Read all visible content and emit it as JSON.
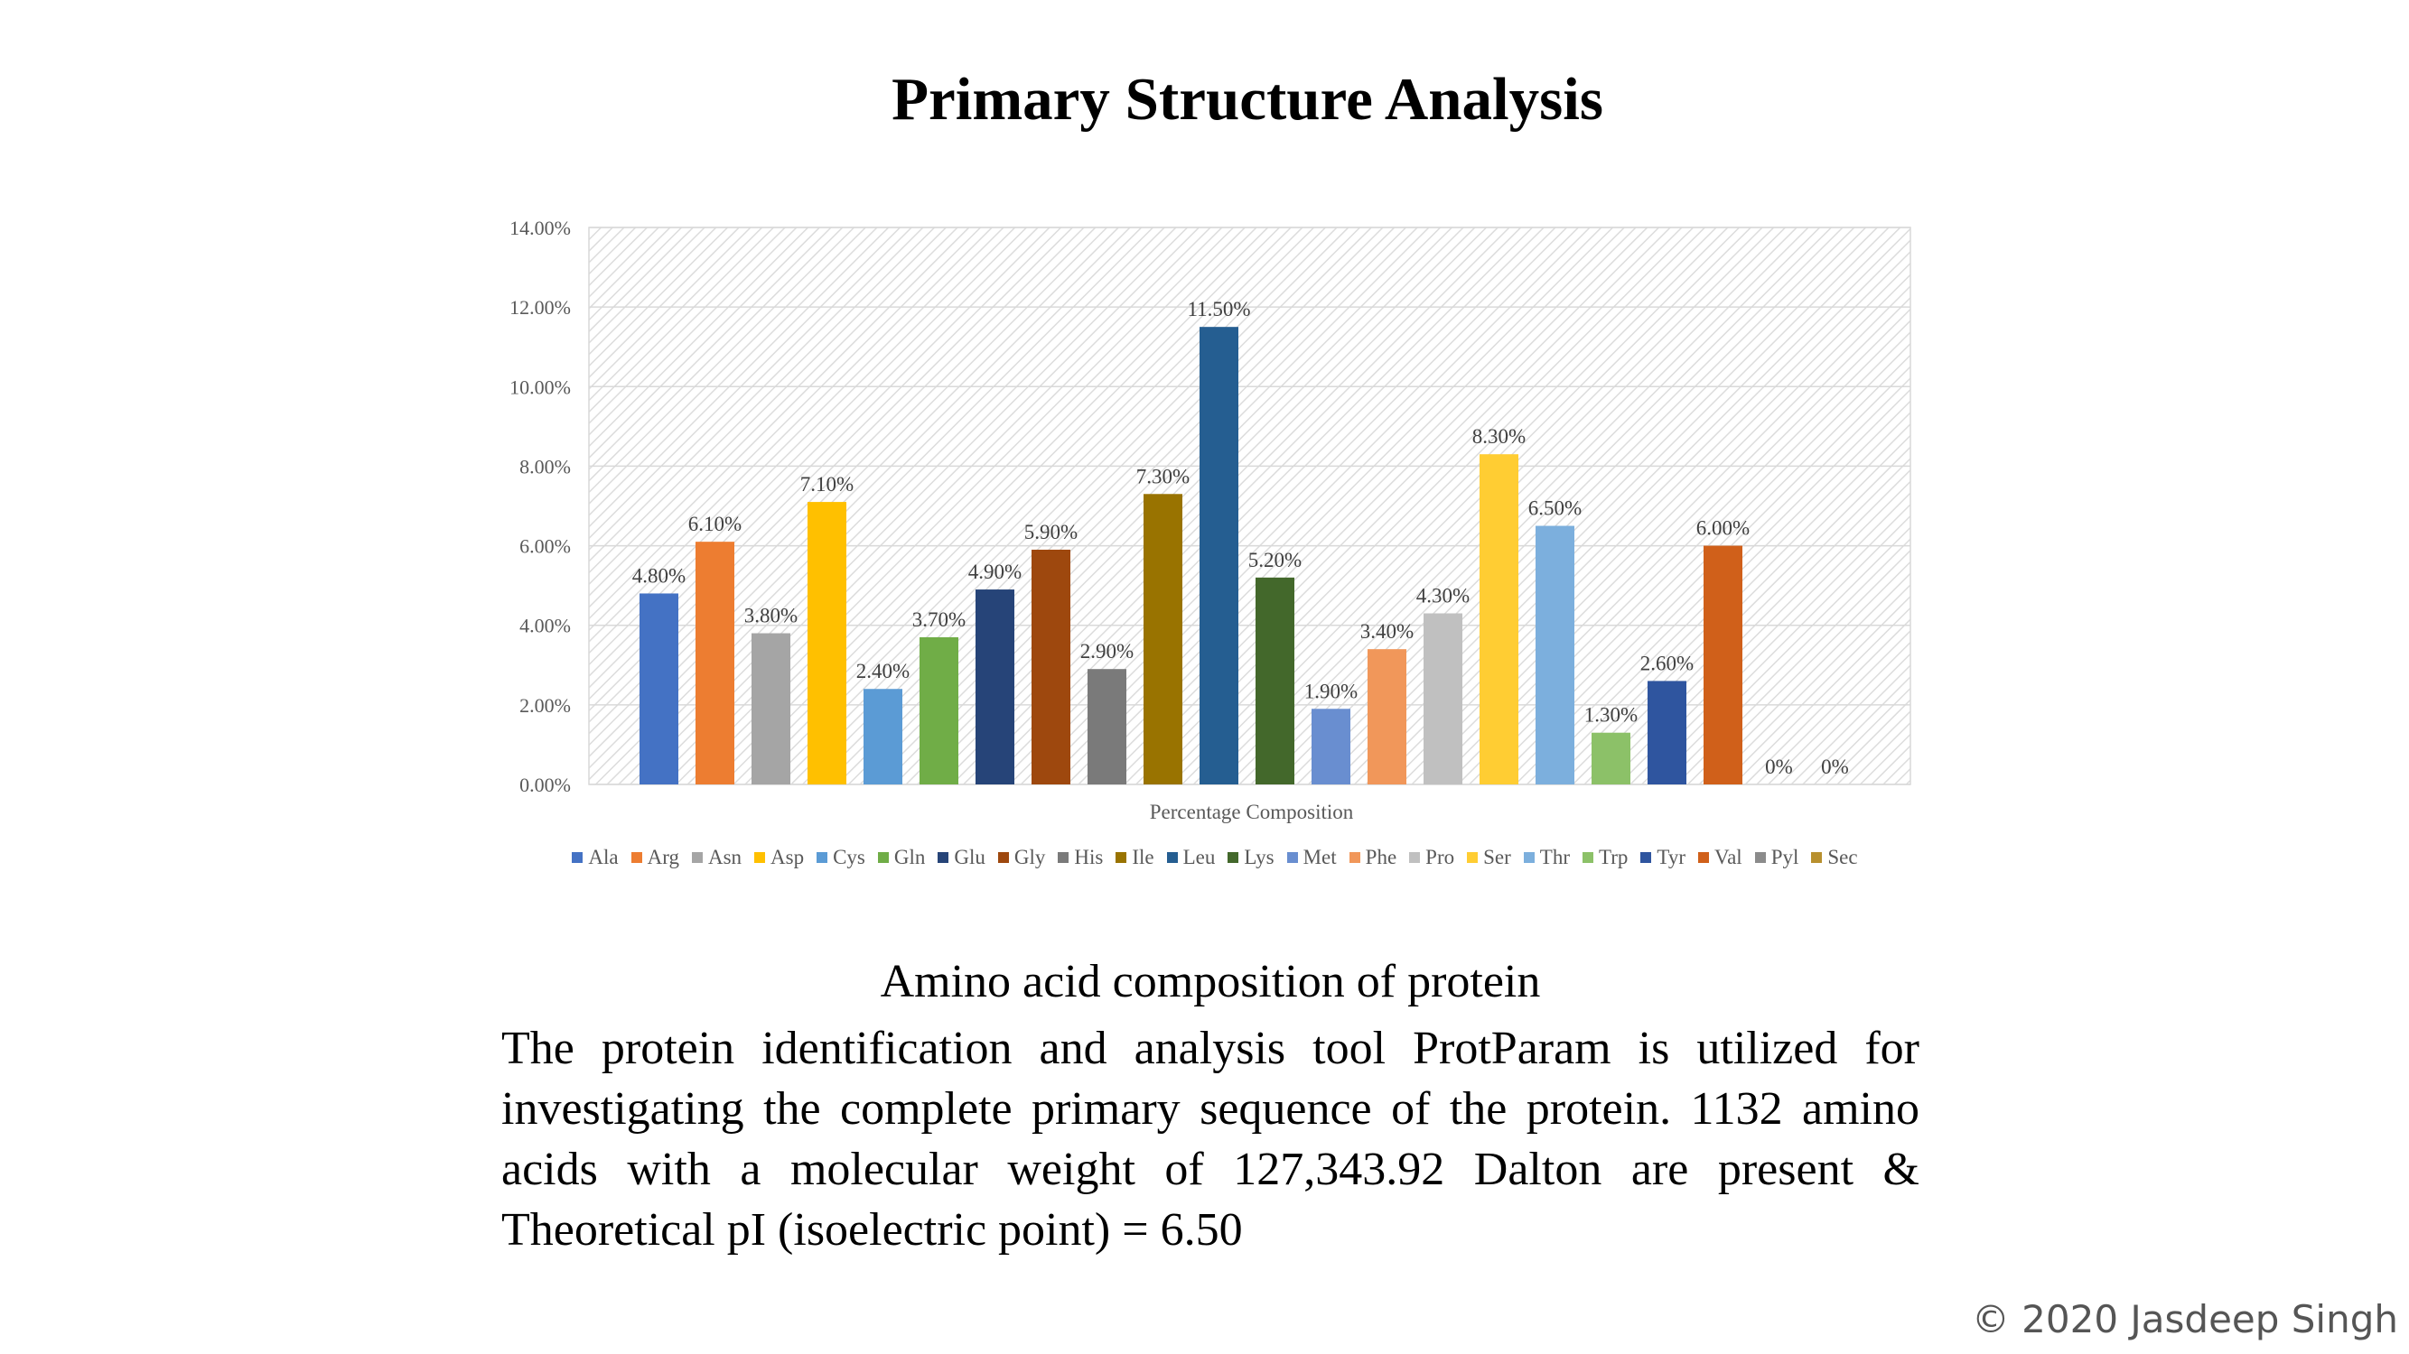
{
  "slide": {
    "title": "Primary Structure Analysis",
    "caption": "Amino acid composition of protein",
    "description": "The protein identification and analysis tool ProtParam is utilized for investigating the complete primary sequence of the protein. 1132 amino acids with a molecular weight of 127,343.92 Dalton are present & Theoretical pI (isoelectric point) = 6.50",
    "copyright": "© 2020 Jasdeep Singh"
  },
  "chart_data": {
    "type": "bar",
    "title": "",
    "xlabel": "Percentage Composition",
    "ylabel": "",
    "ylim": [
      0,
      14
    ],
    "yticks": [
      "0.00%",
      "2.00%",
      "4.00%",
      "6.00%",
      "8.00%",
      "10.00%",
      "12.00%",
      "14.00%"
    ],
    "grid": true,
    "legend_position": "bottom",
    "background": "diagonal hatch",
    "series": [
      {
        "name": "Ala",
        "value": 4.8,
        "label": "4.80%",
        "color": "#4472C4"
      },
      {
        "name": "Arg",
        "value": 6.1,
        "label": "6.10%",
        "color": "#ED7D31"
      },
      {
        "name": "Asn",
        "value": 3.8,
        "label": "3.80%",
        "color": "#A5A5A5"
      },
      {
        "name": "Asp",
        "value": 7.1,
        "label": "7.10%",
        "color": "#FFC000"
      },
      {
        "name": "Cys",
        "value": 2.4,
        "label": "2.40%",
        "color": "#5B9BD5"
      },
      {
        "name": "Gln",
        "value": 3.7,
        "label": "3.70%",
        "color": "#70AD47"
      },
      {
        "name": "Glu",
        "value": 4.9,
        "label": "4.90%",
        "color": "#264478"
      },
      {
        "name": "Gly",
        "value": 5.9,
        "label": "5.90%",
        "color": "#9E480E"
      },
      {
        "name": "His",
        "value": 2.9,
        "label": "2.90%",
        "color": "#7A7A7A"
      },
      {
        "name": "Ile",
        "value": 7.3,
        "label": "7.30%",
        "color": "#997300"
      },
      {
        "name": "Leu",
        "value": 11.5,
        "label": "11.50%",
        "color": "#255E91"
      },
      {
        "name": "Lys",
        "value": 5.2,
        "label": "5.20%",
        "color": "#43682B"
      },
      {
        "name": "Met",
        "value": 1.9,
        "label": "1.90%",
        "color": "#698ED0"
      },
      {
        "name": "Phe",
        "value": 3.4,
        "label": "3.40%",
        "color": "#F1975A"
      },
      {
        "name": "Pro",
        "value": 4.3,
        "label": "4.30%",
        "color": "#C0C0C0"
      },
      {
        "name": "Ser",
        "value": 8.3,
        "label": "8.30%",
        "color": "#FFCD33"
      },
      {
        "name": "Thr",
        "value": 6.5,
        "label": "6.50%",
        "color": "#7CAFDD"
      },
      {
        "name": "Trp",
        "value": 1.3,
        "label": "1.30%",
        "color": "#8CC168"
      },
      {
        "name": "Tyr",
        "value": 2.6,
        "label": "2.60%",
        "color": "#2F559F"
      },
      {
        "name": "Val",
        "value": 6.0,
        "label": "6.00%",
        "color": "#D0601A"
      },
      {
        "name": "Pyl",
        "value": 0,
        "label": "0%",
        "color": "#8B8B8B"
      },
      {
        "name": "Sec",
        "value": 0,
        "label": "0%",
        "color": "#B8902E"
      }
    ]
  }
}
